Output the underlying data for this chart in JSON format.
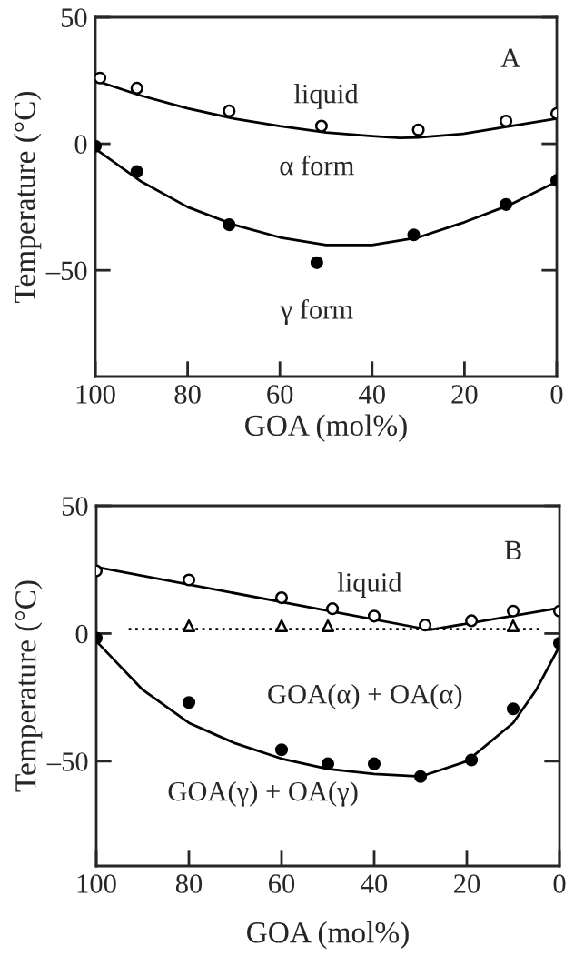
{
  "chart_data": [
    {
      "type": "scatter",
      "xlabel": "GOA (mol%)",
      "ylabel": "Temperature (°C)",
      "xlim": [
        100,
        0
      ],
      "xticks": [
        100,
        80,
        60,
        40,
        20,
        0
      ],
      "ylim": [
        -92,
        50
      ],
      "yticks": [
        50,
        0,
        {
          "value": -50,
          "label": "–50"
        }
      ],
      "series": [
        {
          "marker": "circle",
          "color": "#ffffff",
          "x": [
            99,
            91,
            71,
            51,
            30,
            11,
            0
          ],
          "values": [
            26,
            22,
            13,
            7,
            5.5,
            9,
            12
          ]
        },
        {
          "marker": "circle",
          "color": "#000000",
          "x": [
            100,
            91,
            71,
            52,
            31,
            11,
            0
          ],
          "values": [
            -1,
            -11,
            -32,
            -47,
            -36,
            -24,
            -14.5
          ]
        },
        {
          "type": "line",
          "marker": "none",
          "line_style": "solid",
          "color": "#000000",
          "x": [
            100,
            90,
            80,
            70,
            60,
            50,
            40,
            34,
            30,
            20,
            10,
            0
          ],
          "values": [
            25,
            19,
            14,
            10,
            7,
            4.5,
            3,
            2.3,
            2.5,
            4,
            7,
            10
          ]
        },
        {
          "type": "line",
          "marker": "none",
          "line_style": "solid",
          "color": "#000000",
          "x": [
            100,
            90,
            80,
            70,
            60,
            50,
            40,
            30,
            20,
            10,
            0
          ],
          "values": [
            -2,
            -15,
            -25,
            -32,
            -37,
            -40,
            -40,
            -37,
            -31,
            -24,
            -15
          ]
        }
      ],
      "annotations": [
        "A",
        "liquid",
        "α form",
        "γ form"
      ]
    },
    {
      "type": "scatter",
      "xlabel": "GOA (mol%)",
      "ylabel": "Temperature (°C)",
      "xlim": [
        100,
        0
      ],
      "xticks": [
        100,
        80,
        60,
        40,
        20,
        0
      ],
      "ylim": [
        -91,
        50
      ],
      "yticks": [
        50,
        0,
        {
          "value": -50,
          "label": "–50"
        }
      ],
      "series": [
        {
          "marker": "circle",
          "color": "#ffffff",
          "x": [
            100,
            80,
            60,
            49,
            40,
            29,
            19,
            10,
            0
          ],
          "values": [
            24.5,
            21,
            14,
            9.7,
            6.8,
            3.3,
            5,
            8.8,
            8.8
          ]
        },
        {
          "marker": "triangle",
          "color": "#ffffff",
          "x": [
            80,
            60,
            50,
            10
          ],
          "values": [
            3,
            3,
            3,
            3
          ]
        },
        {
          "marker": "circle",
          "color": "#000000",
          "x": [
            100,
            80,
            60,
            50,
            40,
            30,
            19,
            10,
            0
          ],
          "values": [
            -1.8,
            -27,
            -45.5,
            -51,
            -51,
            -56,
            -49.5,
            -29.5,
            -3.8
          ]
        },
        {
          "type": "line",
          "marker": "none",
          "line_style": "solid",
          "color": "#000000",
          "x": [
            100,
            28,
            0
          ],
          "values": [
            26,
            1.4,
            10
          ]
        },
        {
          "type": "line",
          "marker": "none",
          "line_style": "dotted",
          "color": "#000000",
          "x": [
            93,
            4
          ],
          "values": [
            1.7,
            1.7
          ]
        },
        {
          "type": "line",
          "marker": "none",
          "line_style": "solid",
          "color": "#000000",
          "x": [
            100,
            90,
            80,
            70,
            60,
            50,
            40,
            30,
            20,
            10,
            5,
            0
          ],
          "values": [
            -3,
            -22,
            -35,
            -43,
            -49,
            -53,
            -55,
            -56,
            -50,
            -35,
            -22,
            -5
          ]
        }
      ],
      "annotations": [
        "B",
        "liquid",
        "GOA(α) + OA(α)",
        "GOA(γ) + OA(γ)"
      ]
    }
  ]
}
